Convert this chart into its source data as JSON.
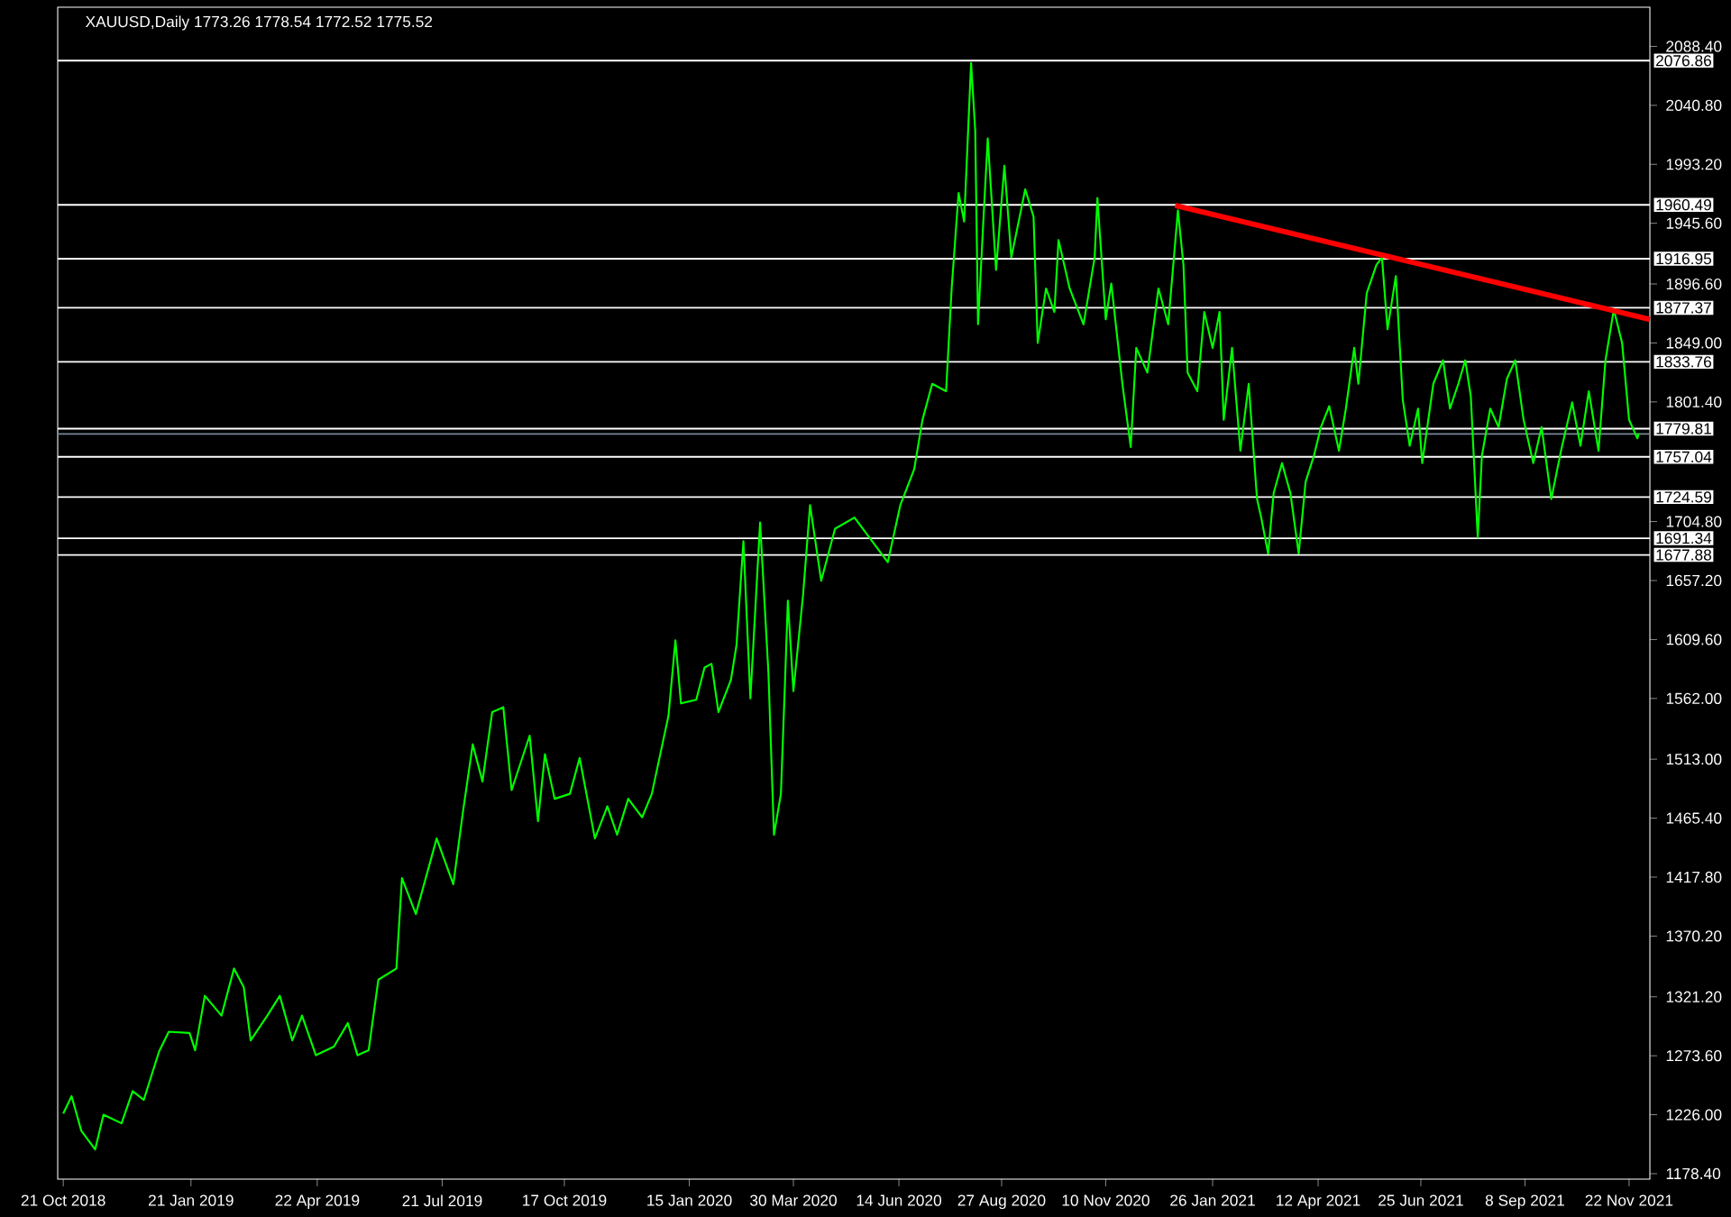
{
  "chart_data": {
    "type": "line",
    "title": "XAUUSD,Daily  1773.26 1778.54 1772.52 1775.52",
    "xlim": [
      "2018-10-17",
      "2021-12-07"
    ],
    "ylim": [
      1174,
      2120
    ],
    "xticks": [
      {
        "value": "2018-10-21",
        "label": "21 Oct 2018"
      },
      {
        "value": "2019-01-21",
        "label": "21 Jan 2019"
      },
      {
        "value": "2019-04-22",
        "label": "22 Apr 2019"
      },
      {
        "value": "2019-07-21",
        "label": "21 Jul 2019"
      },
      {
        "value": "2019-10-17",
        "label": "17 Oct 2019"
      },
      {
        "value": "2020-01-15",
        "label": "15 Jan 2020"
      },
      {
        "value": "2020-03-30",
        "label": "30 Mar 2020"
      },
      {
        "value": "2020-06-14",
        "label": "14 Jun 2020"
      },
      {
        "value": "2020-08-27",
        "label": "27 Aug 2020"
      },
      {
        "value": "2020-11-10",
        "label": "10 Nov 2020"
      },
      {
        "value": "2021-01-26",
        "label": "26 Jan 2021"
      },
      {
        "value": "2021-04-12",
        "label": "12 Apr 2021"
      },
      {
        "value": "2021-06-25",
        "label": "25 Jun 2021"
      },
      {
        "value": "2021-09-08",
        "label": "8 Sep 2021"
      },
      {
        "value": "2021-11-22",
        "label": "22 Nov 2021"
      }
    ],
    "yticks": [
      {
        "value": 2088.4,
        "label": "2088.40"
      },
      {
        "value": 2040.8,
        "label": "2040.80"
      },
      {
        "value": 1993.2,
        "label": "1993.20"
      },
      {
        "value": 1945.6,
        "label": "1945.60"
      },
      {
        "value": 1896.6,
        "label": "1896.60"
      },
      {
        "value": 1849.0,
        "label": "1849.00"
      },
      {
        "value": 1801.4,
        "label": "1801.40"
      },
      {
        "value": 1704.8,
        "label": "1704.80"
      },
      {
        "value": 1657.2,
        "label": "1657.20"
      },
      {
        "value": 1609.6,
        "label": "1609.60"
      },
      {
        "value": 1562.0,
        "label": "1562.00"
      },
      {
        "value": 1513.0,
        "label": "1513.00"
      },
      {
        "value": 1465.4,
        "label": "1465.40"
      },
      {
        "value": 1417.8,
        "label": "1417.80"
      },
      {
        "value": 1370.2,
        "label": "1370.20"
      },
      {
        "value": 1321.2,
        "label": "1321.20"
      },
      {
        "value": 1273.6,
        "label": "1273.60"
      },
      {
        "value": 1226.0,
        "label": "1226.00"
      },
      {
        "value": 1178.4,
        "label": "1178.40"
      }
    ],
    "ref_lines": [
      {
        "axis": "y",
        "value": 2076.86,
        "label": "2076.86",
        "color": "#ffffff"
      },
      {
        "axis": "y",
        "value": 1960.49,
        "label": "1960.49",
        "color": "#ffffff"
      },
      {
        "axis": "y",
        "value": 1916.95,
        "label": "1916.95",
        "color": "#ffffff"
      },
      {
        "axis": "y",
        "value": 1877.37,
        "label": "1877.37",
        "color": "#ffffff"
      },
      {
        "axis": "y",
        "value": 1833.76,
        "label": "1833.76",
        "color": "#ffffff"
      },
      {
        "axis": "y",
        "value": 1779.81,
        "label": "1779.81",
        "color": "#ffffff"
      },
      {
        "axis": "y",
        "value": 1775.52,
        "color": "#778899"
      },
      {
        "axis": "y",
        "value": 1757.04,
        "label": "1757.04",
        "color": "#ffffff"
      },
      {
        "axis": "y",
        "value": 1724.59,
        "label": "1724.59",
        "color": "#ffffff"
      },
      {
        "axis": "y",
        "value": 1691.34,
        "label": "1691.34",
        "color": "#ffffff"
      },
      {
        "axis": "y",
        "value": 1677.88,
        "label": "1677.88",
        "color": "#ffffff"
      }
    ],
    "series": [
      {
        "color": "#00ff00",
        "x": [
          "2018-10-21",
          "2018-10-27",
          "2018-11-03",
          "2018-11-13",
          "2018-11-19",
          "2018-12-02",
          "2018-12-10",
          "2018-12-18",
          "2018-12-29",
          "2019-01-05",
          "2019-01-20",
          "2019-01-24",
          "2019-01-31",
          "2019-02-12",
          "2019-02-21",
          "2019-02-28",
          "2019-03-05",
          "2019-03-17",
          "2019-03-26",
          "2019-04-04",
          "2019-04-11",
          "2019-04-21",
          "2019-05-04",
          "2019-05-14",
          "2019-05-21",
          "2019-05-29",
          "2019-06-05",
          "2019-06-18",
          "2019-06-22",
          "2019-07-02",
          "2019-07-17",
          "2019-07-29",
          "2019-08-05",
          "2019-08-12",
          "2019-08-19",
          "2019-08-26",
          "2019-09-03",
          "2019-09-09",
          "2019-09-22",
          "2019-09-28",
          "2019-10-03",
          "2019-10-10",
          "2019-10-21",
          "2019-10-28",
          "2019-11-08",
          "2019-11-17",
          "2019-11-24",
          "2019-12-02",
          "2019-12-12",
          "2019-12-19",
          "2019-12-31",
          "2020-01-05",
          "2020-01-09",
          "2020-01-20",
          "2020-01-26",
          "2020-01-31",
          "2020-02-05",
          "2020-02-14",
          "2020-02-18",
          "2020-02-23",
          "2020-02-28",
          "2020-03-06",
          "2020-03-12",
          "2020-03-16",
          "2020-03-21",
          "2020-03-24",
          "2020-03-26",
          "2020-03-30",
          "2020-04-06",
          "2020-04-11",
          "2020-04-19",
          "2020-04-29",
          "2020-05-13",
          "2020-06-06",
          "2020-06-15",
          "2020-06-25",
          "2020-07-01",
          "2020-07-08",
          "2020-07-18",
          "2020-07-22",
          "2020-07-27",
          "2020-07-31",
          "2020-08-05",
          "2020-08-08",
          "2020-08-10",
          "2020-08-14",
          "2020-08-17",
          "2020-08-23",
          "2020-08-29",
          "2020-09-03",
          "2020-09-13",
          "2020-09-19",
          "2020-09-22",
          "2020-09-28",
          "2020-10-04",
          "2020-10-07",
          "2020-10-15",
          "2020-10-25",
          "2020-11-02",
          "2020-11-04",
          "2020-11-10",
          "2020-11-14",
          "2020-11-22",
          "2020-11-28",
          "2020-12-02",
          "2020-12-10",
          "2020-12-18",
          "2020-12-25",
          "2021-01-01",
          "2021-01-05",
          "2021-01-08",
          "2021-01-15",
          "2021-01-20",
          "2021-01-26",
          "2021-01-31",
          "2021-02-03",
          "2021-02-09",
          "2021-02-15",
          "2021-02-21",
          "2021-02-27",
          "2021-03-02",
          "2021-03-07",
          "2021-03-11",
          "2021-03-17",
          "2021-03-23",
          "2021-03-29",
          "2021-04-03",
          "2021-04-09",
          "2021-04-14",
          "2021-04-20",
          "2021-04-27",
          "2021-05-02",
          "2021-05-08",
          "2021-05-11",
          "2021-05-17",
          "2021-05-24",
          "2021-05-28",
          "2021-06-01",
          "2021-06-07",
          "2021-06-12",
          "2021-06-17",
          "2021-06-23",
          "2021-06-26",
          "2021-07-04",
          "2021-07-11",
          "2021-07-16",
          "2021-07-22",
          "2021-07-27",
          "2021-07-31",
          "2021-08-05",
          "2021-08-08",
          "2021-08-14",
          "2021-08-20",
          "2021-08-26",
          "2021-09-01",
          "2021-09-07",
          "2021-09-14",
          "2021-09-20",
          "2021-09-27",
          "2021-10-04",
          "2021-10-12",
          "2021-10-18",
          "2021-10-24",
          "2021-10-31",
          "2021-11-05",
          "2021-11-11",
          "2021-11-17",
          "2021-11-22",
          "2021-11-28",
          "2021-11-29"
        ],
        "values": [
          1227,
          1241,
          1213,
          1198,
          1226,
          1219,
          1245,
          1238,
          1277,
          1293,
          1292,
          1278,
          1322,
          1306,
          1344,
          1329,
          1286,
          1306,
          1322,
          1286,
          1306,
          1274,
          1281,
          1300,
          1274,
          1278,
          1335,
          1344,
          1417,
          1388,
          1449,
          1412,
          1471,
          1525,
          1495,
          1551,
          1555,
          1488,
          1532,
          1463,
          1517,
          1481,
          1485,
          1514,
          1449,
          1475,
          1452,
          1481,
          1466,
          1485,
          1548,
          1609,
          1558,
          1561,
          1587,
          1590,
          1551,
          1577,
          1605,
          1689,
          1562,
          1704,
          1583,
          1452,
          1485,
          1577,
          1641,
          1568,
          1646,
          1718,
          1657,
          1699,
          1708,
          1672,
          1718,
          1747,
          1787,
          1816,
          1810,
          1893,
          1970,
          1947,
          2075,
          2020,
          1864,
          1951,
          2014,
          1908,
          1992,
          1918,
          1973,
          1951,
          1849,
          1893,
          1874,
          1932,
          1893,
          1864,
          1918,
          1966,
          1868,
          1897,
          1816,
          1765,
          1845,
          1825,
          1893,
          1864,
          1956,
          1912,
          1825,
          1810,
          1874,
          1845,
          1874,
          1787,
          1845,
          1762,
          1816,
          1723,
          1708,
          1679,
          1728,
          1752,
          1728,
          1679,
          1737,
          1758,
          1781,
          1798,
          1762,
          1796,
          1845,
          1816,
          1889,
          1912,
          1918,
          1860,
          1903,
          1803,
          1766,
          1796,
          1752,
          1816,
          1835,
          1796,
          1816,
          1835,
          1806,
          1692,
          1758,
          1796,
          1781,
          1820,
          1835,
          1787,
          1752,
          1781,
          1723,
          1762,
          1801,
          1766,
          1810,
          1762,
          1835,
          1876,
          1849,
          1787,
          1772,
          1776
        ]
      },
      {
        "color": "#ff0000",
        "x": [
          "2020-12-30",
          "2021-12-07"
        ],
        "values": [
          1960,
          1868
        ]
      }
    ],
    "grid": false,
    "marker": "none",
    "line_style": "solid"
  }
}
